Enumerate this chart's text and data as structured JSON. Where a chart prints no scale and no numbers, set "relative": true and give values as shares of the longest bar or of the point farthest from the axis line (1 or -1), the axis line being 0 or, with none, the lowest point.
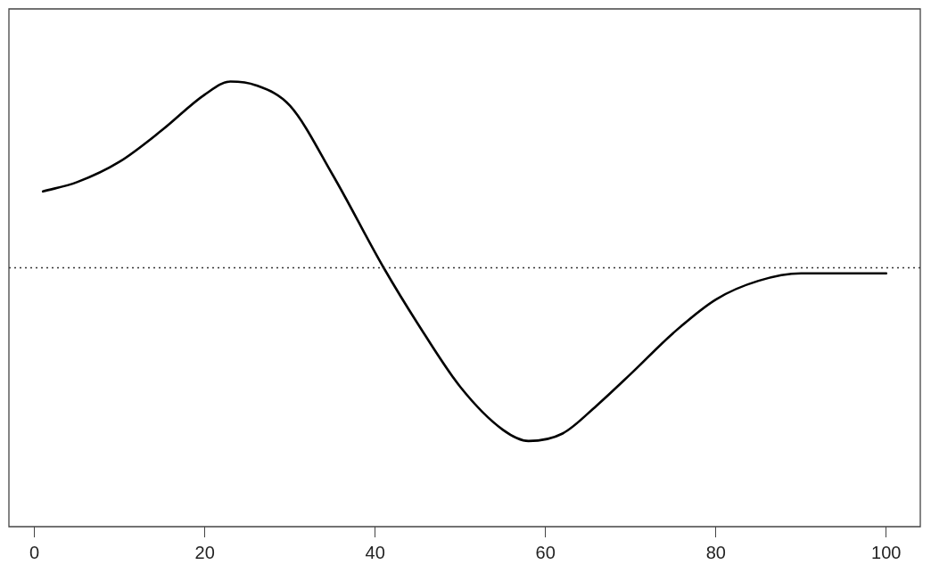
{
  "chart_data": {
    "type": "line",
    "relative": true,
    "x": [
      1,
      5,
      10,
      15,
      20,
      23,
      26,
      30,
      35,
      41,
      45,
      50,
      55,
      58,
      62,
      66,
      70,
      75,
      80,
      85,
      90,
      95,
      100
    ],
    "series": [
      {
        "color": "#000000",
        "values": [
          0.41,
          0.46,
          0.57,
          0.74,
          0.93,
          1.0,
          0.98,
          0.87,
          0.5,
          0.0,
          -0.3,
          -0.64,
          -0.87,
          -0.93,
          -0.89,
          -0.74,
          -0.57,
          -0.35,
          -0.17,
          -0.07,
          -0.03,
          -0.03,
          -0.03
        ]
      }
    ],
    "xlim": [
      -3,
      104
    ],
    "xticks": [
      0,
      20,
      40,
      60,
      80,
      100
    ],
    "ref_lines": [
      {
        "axis": "y",
        "value": 0,
        "color": "#333333",
        "line_style": "dotted"
      }
    ],
    "grid": false,
    "legend": false,
    "marker": "none",
    "line_style": "solid"
  }
}
